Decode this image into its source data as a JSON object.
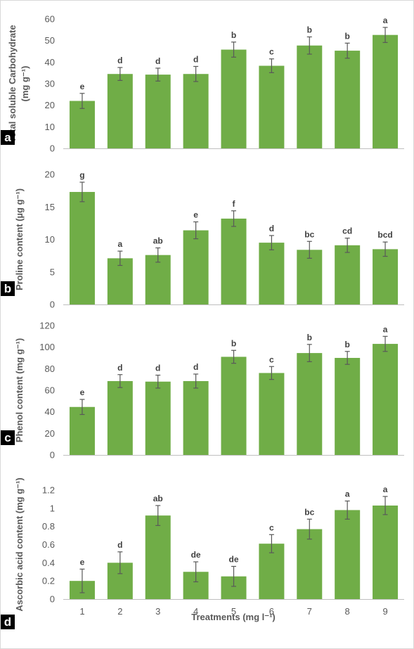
{
  "colors": {
    "bar": "#70ad47",
    "axis": "#bfbfbf",
    "text": "#595959",
    "tag": "#000000"
  },
  "x_title": "Treatments (mg l⁻¹)",
  "chart_data": [
    {
      "panel": "a",
      "type": "bar",
      "categories": [
        "1",
        "2",
        "3",
        "4",
        "5",
        "6",
        "7",
        "8",
        "9"
      ],
      "values": [
        22,
        34.5,
        34.2,
        34.5,
        45.8,
        38.3,
        47.7,
        45.3,
        52.6
      ],
      "errors": [
        3.5,
        3,
        3,
        3.5,
        3.5,
        3.2,
        4,
        3.5,
        3.5
      ],
      "letters": [
        "e",
        "d",
        "d",
        "d",
        "b",
        "c",
        "b",
        "b",
        "a"
      ],
      "ylabel": "Total soluble Carbohydrate",
      "ylabel_unit": "(mg g⁻¹)",
      "ylim": [
        0,
        60
      ],
      "yticks": [
        0,
        10,
        20,
        30,
        40,
        50,
        60
      ],
      "grid": false
    },
    {
      "panel": "b",
      "type": "bar",
      "categories": [
        "1",
        "2",
        "3",
        "4",
        "5",
        "6",
        "7",
        "8",
        "9"
      ],
      "values": [
        17.3,
        7.1,
        7.6,
        11.4,
        13.2,
        9.5,
        8.4,
        9.1,
        8.5
      ],
      "errors": [
        1.5,
        1.1,
        1.1,
        1.3,
        1.2,
        1.1,
        1.3,
        1.1,
        1.1
      ],
      "letters": [
        "g",
        "a",
        "ab",
        "e",
        "f",
        "d",
        "bc",
        "cd",
        "bcd"
      ],
      "ylabel": "Proline content (µg g⁻¹)",
      "ylabel_unit": "",
      "ylim": [
        0,
        20
      ],
      "yticks": [
        0,
        5,
        10,
        15,
        20
      ],
      "grid": false
    },
    {
      "panel": "c",
      "type": "bar",
      "categories": [
        "1",
        "2",
        "3",
        "4",
        "5",
        "6",
        "7",
        "8",
        "9"
      ],
      "values": [
        44.5,
        68.5,
        68,
        68.5,
        91,
        76,
        94.5,
        90,
        103
      ],
      "errors": [
        7,
        6,
        6,
        6.5,
        6,
        6,
        8,
        6,
        7
      ],
      "letters": [
        "e",
        "d",
        "d",
        "d",
        "b",
        "c",
        "b",
        "b",
        "a"
      ],
      "ylabel": "Phenol content (mg g⁻¹)",
      "ylabel_unit": "",
      "ylim": [
        0,
        120
      ],
      "yticks": [
        0,
        20,
        40,
        60,
        80,
        100,
        120
      ],
      "grid": false
    },
    {
      "panel": "d",
      "type": "bar",
      "categories": [
        "1",
        "2",
        "3",
        "4",
        "5",
        "6",
        "7",
        "8",
        "9"
      ],
      "values": [
        0.2,
        0.4,
        0.92,
        0.3,
        0.25,
        0.61,
        0.77,
        0.98,
        1.03
      ],
      "errors": [
        0.13,
        0.12,
        0.11,
        0.11,
        0.11,
        0.1,
        0.11,
        0.1,
        0.1
      ],
      "letters": [
        "e",
        "d",
        "ab",
        "de",
        "de",
        "c",
        "bc",
        "a",
        "a"
      ],
      "ylabel": "Ascorbic acid content (mg g⁻¹)",
      "ylabel_unit": "",
      "ylim": [
        0,
        1.2
      ],
      "yticks": [
        "0",
        "0.2",
        "0.4",
        "0.6",
        "0.8",
        "1",
        "1.2"
      ],
      "grid": false
    }
  ]
}
